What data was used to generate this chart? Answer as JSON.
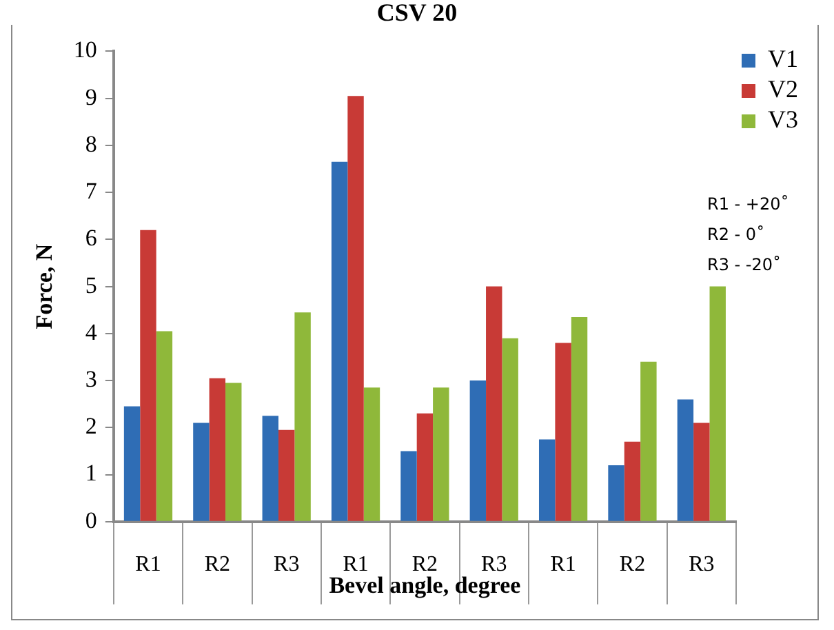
{
  "chart_data": {
    "type": "bar",
    "title": "CSV 20",
    "xlabel": "Bevel angle, degree",
    "ylabel": "Force, N",
    "categories": [
      "R1",
      "R2",
      "R3",
      "R1",
      "R2",
      "R3",
      "R1",
      "R2",
      "R3"
    ],
    "series": [
      {
        "name": "V1",
        "color": "#2f6db5",
        "values": [
          2.45,
          2.1,
          2.25,
          7.65,
          1.5,
          3.0,
          1.75,
          1.2,
          2.6
        ]
      },
      {
        "name": "V2",
        "color": "#c83a36",
        "values": [
          6.2,
          3.05,
          1.95,
          9.05,
          2.3,
          5.0,
          3.8,
          1.7,
          2.1
        ]
      },
      {
        "name": "V3",
        "color": "#8fb83a",
        "values": [
          4.05,
          2.95,
          4.45,
          2.85,
          2.85,
          3.9,
          4.35,
          3.4,
          5.0
        ]
      }
    ],
    "ylim": [
      0,
      10
    ],
    "yticks": [
      0,
      1,
      2,
      3,
      4,
      5,
      6,
      7,
      8,
      9,
      10
    ],
    "grid": false,
    "legend": "top right",
    "annotations": [
      "R1 - +20˚",
      "R2 - 0˚",
      "R3 - -20˚"
    ]
  }
}
